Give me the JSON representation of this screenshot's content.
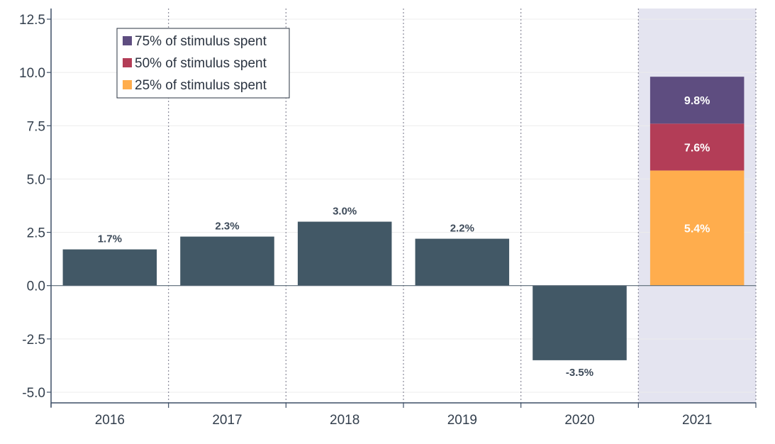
{
  "chart_data": {
    "type": "bar",
    "categories": [
      "2016",
      "2017",
      "2018",
      "2019",
      "2020",
      "2021"
    ],
    "series": [
      {
        "values": [
          1.7,
          2.3,
          3.0,
          2.2,
          -3.5,
          null
        ],
        "labels": [
          "1.7%",
          "2.3%",
          "3.0%",
          "2.2%",
          "-3.5%",
          ""
        ],
        "color": "#425866"
      },
      {
        "name": "25% of stimulus spent",
        "values": [
          null,
          null,
          null,
          null,
          null,
          5.4
        ],
        "labels": [
          "",
          "",
          "",
          "",
          "",
          "5.4%"
        ],
        "color": "#ffad4d"
      },
      {
        "name": "50% of stimulus spent",
        "values": [
          null,
          null,
          null,
          null,
          null,
          7.6
        ],
        "labels": [
          "",
          "",
          "",
          "",
          "",
          "7.6%"
        ],
        "color": "#b33d57"
      },
      {
        "name": "75% of stimulus spent",
        "values": [
          null,
          null,
          null,
          null,
          null,
          9.8
        ],
        "labels": [
          "",
          "",
          "",
          "",
          "",
          "9.8%"
        ],
        "color": "#5e4d80"
      }
    ],
    "ylim": [
      -5.5,
      13
    ],
    "yticks": [
      "12.5",
      "10.0",
      "7.5",
      "5.0",
      "2.5",
      "0.0",
      "-2.5",
      "-5.0"
    ],
    "ytick_values": [
      12.5,
      10.0,
      7.5,
      5.0,
      2.5,
      0.0,
      -2.5,
      -5.0
    ],
    "highlight_category": "2021",
    "highlight_color": "#e4e4f0",
    "legend": {
      "placement": "top-left",
      "entries": [
        "75% of stimulus spent",
        "50% of stimulus spent",
        "25% of stimulus spent"
      ],
      "colors": [
        "#5e4d80",
        "#b33d57",
        "#ffad4d"
      ]
    },
    "grid": true,
    "xlabel": "",
    "ylabel": ""
  }
}
